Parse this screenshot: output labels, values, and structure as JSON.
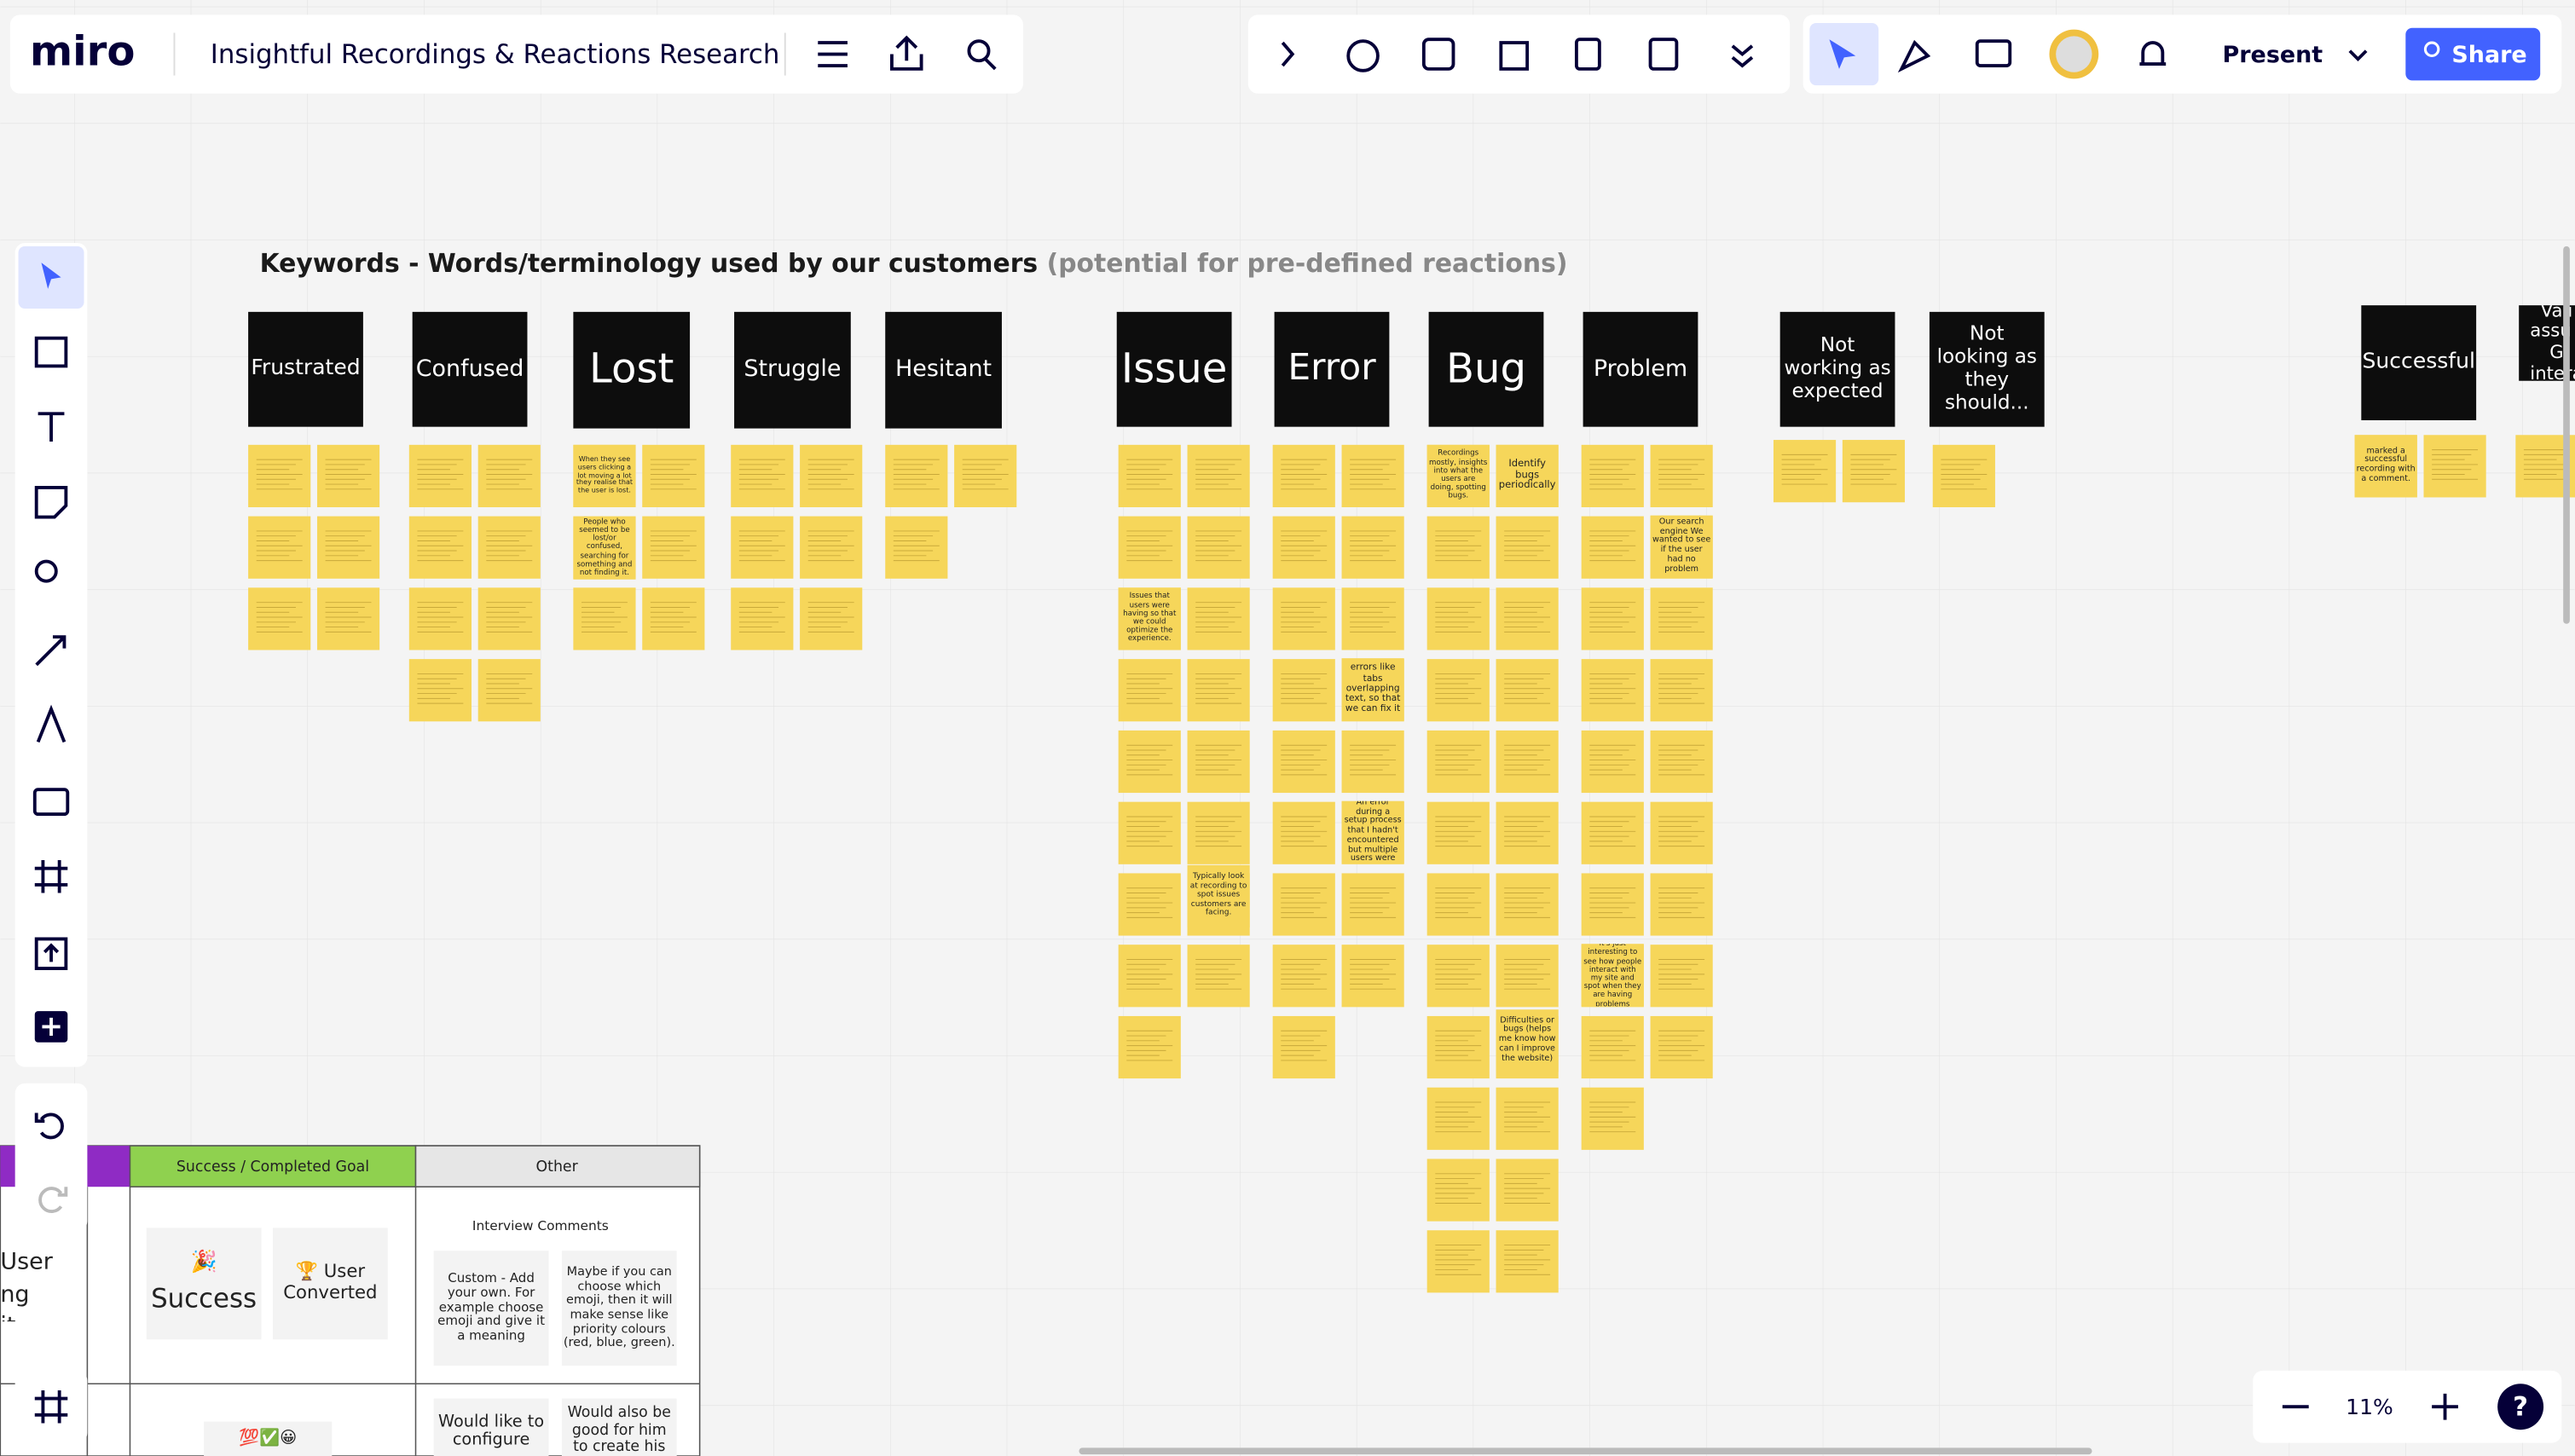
{
  "header": {
    "logo": "miro",
    "board_title": "Insightful Recordings & Reactions Research",
    "present": "Present",
    "share": "Share"
  },
  "board": {
    "heading": "Keywords - Words/terminology used by our customers",
    "heading_note": "(potential for pre-defined reactions)",
    "keywords": [
      "Frustrated",
      "Confused",
      "Lost",
      "Struggle",
      "Hesitant",
      "Issue",
      "Error",
      "Bug",
      "Problem",
      "Not working as expected",
      "Not looking as they should...",
      "Successful",
      "Vali assu / G intera"
    ],
    "notes": [
      "Identify bugs periodically",
      "Recordings mostly, insights into what the users are doing, spotting bugs.",
      "Our search engine We wanted to see if the user had no problem",
      "errors like tabs overlapping text, so that we can fix it",
      "An error during a setup process that I hadn't encountered but multiple users were",
      "Difficulties or bugs (helps me know how can I improve the website)",
      "It's just interesting to see how people interact with my site and spot when they are having problems",
      "marked a successful recording with a comment.",
      "Typically look at recording to spot issues customers are facing.",
      "Issues that users were having so that we could optimize the experience.",
      "When they see users clicking a lot moving a lot they realise that the user is lost.",
      "People who seemed to be lost/or confused, searching for something and not finding it."
    ]
  },
  "table": {
    "headers": [
      "Success / Completed Goal",
      "Other"
    ],
    "sub_header": "Interview Comments",
    "stickies": [
      "🎉",
      "Success",
      "🏆 User Converted",
      "Custom - Add your own. For example choose emoji and give it a meaning",
      "Maybe if you can choose which emoji, then it will make sense like priority colours (red, blue, green).",
      "Would like to configure",
      "Would also be good for him to create his",
      "💯✅😀"
    ],
    "left_partial": "User ng it"
  },
  "zoom": "11%"
}
